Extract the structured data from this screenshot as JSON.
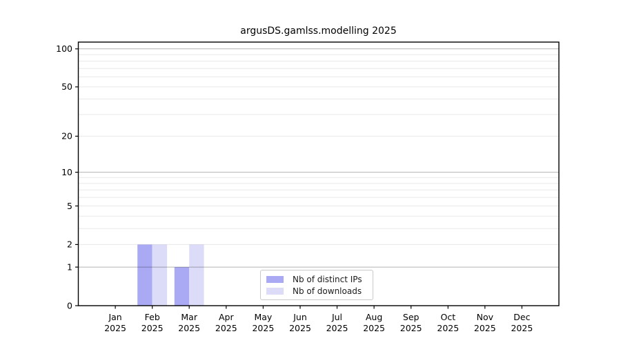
{
  "chart_data": {
    "type": "bar",
    "title": "argusDS.gamlss.modelling 2025",
    "x_categories": [
      "Jan",
      "Feb",
      "Mar",
      "Apr",
      "May",
      "Jun",
      "Jul",
      "Aug",
      "Sep",
      "Oct",
      "Nov",
      "Dec"
    ],
    "x_year_label": "2025",
    "series": [
      {
        "name": "Nb of distinct IPs",
        "color": "#a9a9f4",
        "values": [
          0,
          2,
          1,
          0,
          0,
          0,
          0,
          0,
          0,
          0,
          0,
          0
        ]
      },
      {
        "name": "Nb of downloads",
        "color": "#dcdcf9",
        "values": [
          0,
          2,
          2,
          0,
          0,
          0,
          0,
          0,
          0,
          0,
          0,
          0
        ]
      }
    ],
    "y_scale": "log1p",
    "y_tick_labels": [
      0,
      1,
      2,
      5,
      10,
      20,
      50,
      100
    ],
    "y_major_gridlines": [
      1,
      10,
      100
    ],
    "y_minor_gridlines": [
      2,
      3,
      4,
      5,
      6,
      7,
      8,
      9,
      20,
      30,
      40,
      50,
      60,
      70,
      80,
      90
    ],
    "ylim": [
      0,
      113
    ],
    "grid": true,
    "legend_position": "inside-bottom-center"
  }
}
